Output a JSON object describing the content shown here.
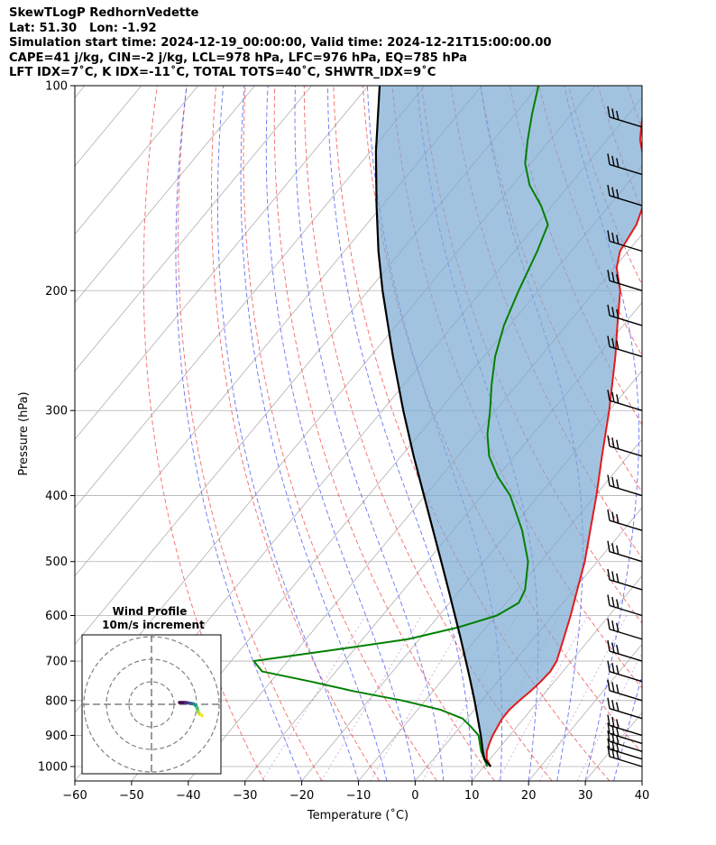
{
  "header": {
    "line1": "SkewTLogP RedhornVedette",
    "line2": "Lat: 51.30   Lon: -1.92",
    "line3": "Simulation start time: 2024-12-19_00:00:00, Valid time: 2024-12-21T15:00:00.00",
    "line4": "CAPE=41 j/kg, CIN=-2 j/kg, LCL=978 hPa, LFC=976 hPa, EQ=785 hPa",
    "line5": "LFT IDX=7˚C, K IDX=-11˚C, TOTAL TOTS=40˚C, SHWTR_IDX=9˚C"
  },
  "chart_data": {
    "type": "line",
    "subtype": "skew-t log-p",
    "xlabel": "Temperature (˚C)",
    "ylabel": "Pressure (hPa)",
    "xlim": [
      -60,
      40
    ],
    "ylim": [
      1050,
      100
    ],
    "x_ticks": [
      -60,
      -50,
      -40,
      -30,
      -20,
      -10,
      0,
      10,
      20,
      30,
      40
    ],
    "x_tick_labels": [
      "−60",
      "−50",
      "−40",
      "−30",
      "−20",
      "−10",
      "0",
      "10",
      "20",
      "30",
      "40"
    ],
    "y_ticks": [
      1000,
      900,
      800,
      700,
      600,
      500,
      400,
      300,
      200,
      100
    ],
    "grid": true,
    "series": [
      {
        "name": "Temperature",
        "color": "#e31a1c",
        "points": [
          [
            1000,
            11.2
          ],
          [
            975,
            9.4
          ],
          [
            950,
            8.3
          ],
          [
            925,
            7.6
          ],
          [
            900,
            7.0
          ],
          [
            875,
            6.6
          ],
          [
            850,
            6.2
          ],
          [
            825,
            6.2
          ],
          [
            800,
            6.6
          ],
          [
            775,
            7.2
          ],
          [
            750,
            7.6
          ],
          [
            725,
            7.8
          ],
          [
            700,
            7.4
          ],
          [
            650,
            5.4
          ],
          [
            600,
            3.2
          ],
          [
            550,
            0.6
          ],
          [
            500,
            -2.2
          ],
          [
            450,
            -5.8
          ],
          [
            400,
            -9.8
          ],
          [
            350,
            -14.6
          ],
          [
            300,
            -20.0
          ],
          [
            250,
            -26.8
          ],
          [
            225,
            -31.0
          ],
          [
            200,
            -35.6
          ],
          [
            185,
            -39.6
          ],
          [
            175,
            -41.4
          ],
          [
            160,
            -42.4
          ],
          [
            150,
            -44.0
          ],
          [
            140,
            -46.4
          ],
          [
            130,
            -50.0
          ],
          [
            120,
            -54.2
          ],
          [
            110,
            -57.5
          ],
          [
            100,
            -61.0
          ]
        ]
      },
      {
        "name": "Dewpoint",
        "color": "#008000",
        "points": [
          [
            1000,
            10.6
          ],
          [
            950,
            7.3
          ],
          [
            900,
            4.5
          ],
          [
            875,
            2.0
          ],
          [
            850,
            -0.8
          ],
          [
            825,
            -6.0
          ],
          [
            800,
            -14.0
          ],
          [
            775,
            -24.0
          ],
          [
            750,
            -33.0
          ],
          [
            725,
            -43.0
          ],
          [
            700,
            -46.0
          ],
          [
            675,
            -34.0
          ],
          [
            650,
            -22.0
          ],
          [
            625,
            -15.0
          ],
          [
            600,
            -9.8
          ],
          [
            575,
            -7.8
          ],
          [
            550,
            -8.6
          ],
          [
            500,
            -12.2
          ],
          [
            450,
            -17.8
          ],
          [
            400,
            -25.0
          ],
          [
            375,
            -30.0
          ],
          [
            350,
            -34.5
          ],
          [
            325,
            -38.0
          ],
          [
            300,
            -41.0
          ],
          [
            275,
            -44.5
          ],
          [
            250,
            -48.0
          ],
          [
            225,
            -51.0
          ],
          [
            200,
            -53.5
          ],
          [
            175,
            -56.0
          ],
          [
            160,
            -58.0
          ],
          [
            150,
            -62.0
          ],
          [
            140,
            -67.0
          ],
          [
            130,
            -71.0
          ],
          [
            120,
            -74.0
          ],
          [
            110,
            -77.0
          ],
          [
            100,
            -80.0
          ]
        ]
      },
      {
        "name": "Parcel profile",
        "color": "#000000",
        "points": [
          [
            1000,
            11.2
          ],
          [
            975,
            9.0
          ],
          [
            950,
            7.6
          ],
          [
            900,
            4.9
          ],
          [
            850,
            1.9
          ],
          [
            800,
            -1.3
          ],
          [
            750,
            -4.8
          ],
          [
            700,
            -8.6
          ],
          [
            650,
            -12.7
          ],
          [
            600,
            -17.2
          ],
          [
            550,
            -22.1
          ],
          [
            500,
            -27.5
          ],
          [
            450,
            -33.5
          ],
          [
            400,
            -40.2
          ],
          [
            350,
            -47.8
          ],
          [
            300,
            -56.3
          ],
          [
            250,
            -66.0
          ],
          [
            200,
            -77.5
          ],
          [
            175,
            -84.0
          ],
          [
            150,
            -91.0
          ],
          [
            125,
            -99.0
          ],
          [
            100,
            -108.0
          ]
        ]
      }
    ],
    "wind_barbs_pressures": [
      1000,
      975,
      950,
      925,
      900,
      850,
      800,
      750,
      700,
      650,
      600,
      550,
      500,
      450,
      400,
      350,
      300,
      250,
      225,
      200,
      175,
      150,
      135,
      115
    ],
    "hodograph": {
      "title": "Wind Profile",
      "subtitle": "10m/s increment",
      "rings": 3,
      "trace": [
        [
          0.0,
          0.0
        ],
        [
          0.15,
          0.0
        ],
        [
          0.25,
          -0.03
        ],
        [
          0.33,
          -0.05
        ],
        [
          0.38,
          -0.1
        ],
        [
          0.42,
          -0.2
        ],
        [
          0.44,
          -0.35
        ],
        [
          0.48,
          -0.45
        ],
        [
          0.52,
          -0.48
        ],
        [
          0.54,
          -0.52
        ]
      ]
    }
  }
}
